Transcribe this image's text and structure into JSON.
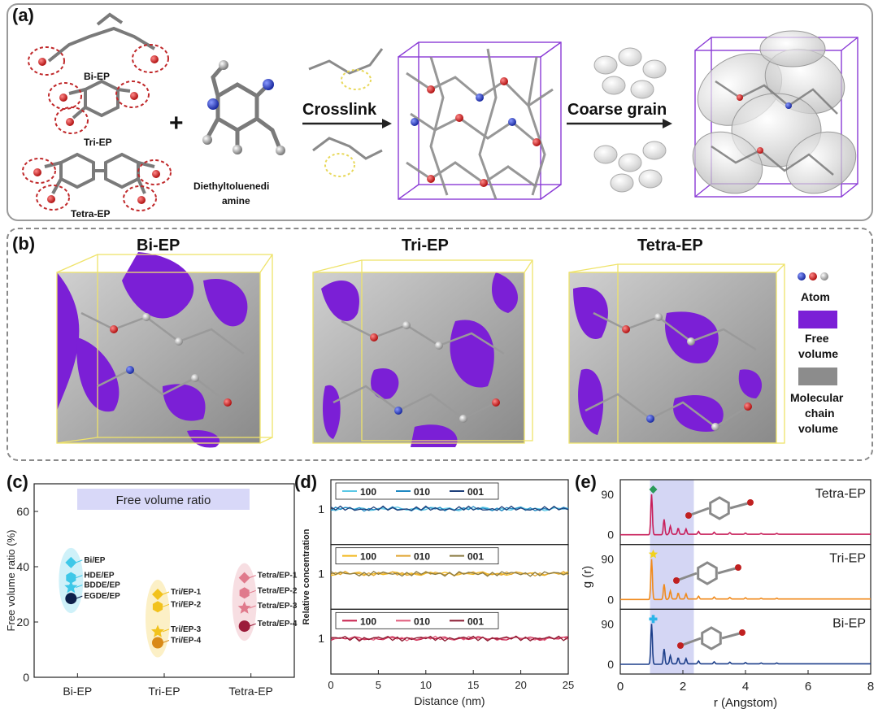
{
  "panel_a": {
    "label": "(a)",
    "bi_ep": "Bi-EP",
    "tri_ep": "Tri-EP",
    "tetra_ep": "Tetra-EP",
    "plus": "+",
    "diethyl_line1": "Diethyltoluenedi",
    "diethyl_line2": "amine",
    "crosslink": "Crosslink",
    "coarse_grain": "Coarse grain"
  },
  "panel_b": {
    "label": "(b)",
    "titles": [
      "Bi-EP",
      "Tri-EP",
      "Tetra-EP"
    ],
    "legend": {
      "atom": "Atom",
      "free_volume_1": "Free",
      "free_volume_2": "volume",
      "mol_1": "Molecular",
      "mol_2": "chain",
      "mol_3": "volume"
    },
    "colors": {
      "free": "#7b1fd6",
      "chain": "#8c8c8c",
      "box": "#e8e04a"
    }
  },
  "panel_c": {
    "label": "(c)"
  },
  "panel_d": {
    "label": "(d)"
  },
  "panel_e": {
    "label": "(e)"
  },
  "chart_data": [
    {
      "type": "scatter",
      "panel": "c",
      "title": "Free volume ratio",
      "ylabel": "Free volume ratio (%)",
      "ylim": [
        0,
        70
      ],
      "yticks": [
        0,
        20,
        40,
        60
      ],
      "categories": [
        "Bi-EP",
        "Tri-EP",
        "Tetra-EP"
      ],
      "series": [
        {
          "group": "Bi-EP",
          "color": "#3ec8e8",
          "points": [
            {
              "name": "Bi/EP",
              "value": 41.5,
              "marker": "diamond"
            },
            {
              "name": "HDE/EP",
              "value": 36,
              "marker": "hexagon"
            },
            {
              "name": "BDDE/EP",
              "value": 32.5,
              "marker": "star"
            },
            {
              "name": "EGDE/EP",
              "value": 28.5,
              "marker": "circle",
              "color": "#0d1f4a"
            }
          ]
        },
        {
          "group": "Tri-EP",
          "color": "#f2c21c",
          "points": [
            {
              "name": "Tri/EP-1",
              "value": 30,
              "marker": "diamond"
            },
            {
              "name": "Tri/EP-2",
              "value": 25.5,
              "marker": "hexagon"
            },
            {
              "name": "Tri/EP-3",
              "value": 16.5,
              "marker": "star"
            },
            {
              "name": "Tri/EP-4",
              "value": 12.5,
              "marker": "circle",
              "color": "#d98a18"
            }
          ]
        },
        {
          "group": "Tetra-EP",
          "color": "#e07a8c",
          "points": [
            {
              "name": "Tetra/EP-1",
              "value": 36,
              "marker": "diamond"
            },
            {
              "name": "Tetra/EP-2",
              "value": 30.5,
              "marker": "hexagon"
            },
            {
              "name": "Tetra/EP-3",
              "value": 25,
              "marker": "star"
            },
            {
              "name": "Tetra/EP-4",
              "value": 18.5,
              "marker": "circle",
              "color": "#9b1b3a"
            }
          ]
        }
      ]
    },
    {
      "type": "line",
      "panel": "d",
      "xlabel": "Distance (nm)",
      "ylabel": "Relative concentration",
      "xlim": [
        0,
        25
      ],
      "xticks": [
        0,
        5,
        10,
        15,
        20,
        25
      ],
      "legend_labels": [
        "100",
        "010",
        "001"
      ],
      "subplots": [
        {
          "ytick": "1",
          "colors": [
            "#5ac8e6",
            "#1f88c2",
            "#1d3f7a"
          ]
        },
        {
          "ytick": "1",
          "colors": [
            "#f2b81c",
            "#e0a530",
            "#8a7a40"
          ]
        },
        {
          "ytick": "1",
          "colors": [
            "#c81e4a",
            "#e05a7a",
            "#8a1a30"
          ]
        }
      ]
    },
    {
      "type": "line",
      "panel": "e",
      "xlabel": "r (Angstom)",
      "ylabel": "g (r)",
      "xlim": [
        0,
        8
      ],
      "xticks": [
        0,
        2,
        4,
        6,
        8
      ],
      "highlight_range": [
        0.95,
        2.35
      ],
      "subplots": [
        {
          "name": "Tetra-EP",
          "color": "#c81e5a",
          "yticks": [
            "90",
            "0"
          ],
          "peak_marker": "diamond",
          "peak_marker_color": "#2a9a5a"
        },
        {
          "name": "Tri-EP",
          "color": "#f08a1c",
          "yticks": [
            "90",
            "0"
          ],
          "peak_marker": "star",
          "peak_marker_color": "#f2d21c"
        },
        {
          "name": "Bi-EP",
          "color": "#1d3f8a",
          "yticks": [
            "90",
            "0"
          ],
          "peak_marker": "plus",
          "peak_marker_color": "#2ab4e8"
        }
      ]
    }
  ]
}
